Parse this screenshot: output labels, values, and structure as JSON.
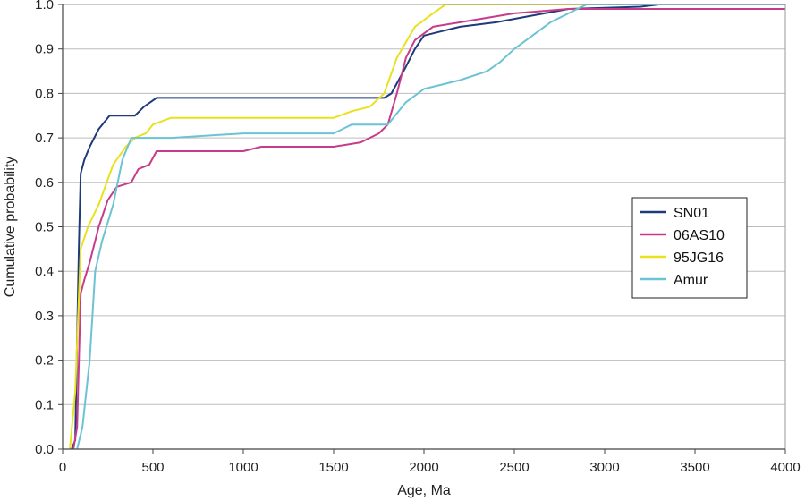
{
  "chart_data": {
    "type": "line",
    "xlabel": "Age, Ma",
    "ylabel": "Cumulative probability",
    "xlim": [
      0,
      4000
    ],
    "ylim": [
      0,
      1
    ],
    "x_ticks": [
      "0",
      "500",
      "1000",
      "1500",
      "2000",
      "2500",
      "3000",
      "3500",
      "4000"
    ],
    "y_ticks": [
      "0.0",
      "0.1",
      "0.2",
      "0.3",
      "0.4",
      "0.5",
      "0.6",
      "0.7",
      "0.8",
      "0.9",
      "1.0"
    ],
    "grid": "horizontal",
    "legend_position": "right",
    "series": [
      {
        "name": "SN01",
        "color": "#1f3a7a",
        "points": [
          [
            50,
            0
          ],
          [
            70,
            0.02
          ],
          [
            80,
            0.25
          ],
          [
            90,
            0.46
          ],
          [
            100,
            0.62
          ],
          [
            120,
            0.65
          ],
          [
            150,
            0.68
          ],
          [
            200,
            0.72
          ],
          [
            260,
            0.75
          ],
          [
            400,
            0.75
          ],
          [
            450,
            0.77
          ],
          [
            520,
            0.79
          ],
          [
            1000,
            0.79
          ],
          [
            1500,
            0.79
          ],
          [
            1780,
            0.79
          ],
          [
            1820,
            0.8
          ],
          [
            1900,
            0.86
          ],
          [
            1950,
            0.9
          ],
          [
            2000,
            0.93
          ],
          [
            2100,
            0.94
          ],
          [
            2200,
            0.95
          ],
          [
            2400,
            0.96
          ],
          [
            2600,
            0.975
          ],
          [
            2800,
            0.99
          ],
          [
            3200,
            0.995
          ],
          [
            3300,
            1.0
          ],
          [
            4000,
            1.0
          ]
        ]
      },
      {
        "name": "06AS10",
        "color": "#c73c8a",
        "points": [
          [
            60,
            0
          ],
          [
            80,
            0.05
          ],
          [
            100,
            0.35
          ],
          [
            120,
            0.38
          ],
          [
            150,
            0.42
          ],
          [
            200,
            0.5
          ],
          [
            250,
            0.56
          ],
          [
            300,
            0.59
          ],
          [
            380,
            0.6
          ],
          [
            420,
            0.63
          ],
          [
            480,
            0.64
          ],
          [
            520,
            0.67
          ],
          [
            1000,
            0.67
          ],
          [
            1100,
            0.68
          ],
          [
            1500,
            0.68
          ],
          [
            1650,
            0.69
          ],
          [
            1750,
            0.71
          ],
          [
            1800,
            0.73
          ],
          [
            1850,
            0.8
          ],
          [
            1900,
            0.88
          ],
          [
            1950,
            0.92
          ],
          [
            2050,
            0.95
          ],
          [
            2200,
            0.96
          ],
          [
            2500,
            0.98
          ],
          [
            2800,
            0.99
          ],
          [
            3000,
            0.99
          ],
          [
            4000,
            0.99
          ]
        ]
      },
      {
        "name": "95JG16",
        "color": "#e8e21e",
        "points": [
          [
            40,
            0
          ],
          [
            70,
            0.13
          ],
          [
            100,
            0.45
          ],
          [
            140,
            0.5
          ],
          [
            200,
            0.55
          ],
          [
            280,
            0.64
          ],
          [
            350,
            0.68
          ],
          [
            400,
            0.7
          ],
          [
            460,
            0.71
          ],
          [
            500,
            0.73
          ],
          [
            600,
            0.745
          ],
          [
            1000,
            0.745
          ],
          [
            1500,
            0.745
          ],
          [
            1600,
            0.76
          ],
          [
            1700,
            0.77
          ],
          [
            1780,
            0.8
          ],
          [
            1850,
            0.88
          ],
          [
            1950,
            0.95
          ],
          [
            2050,
            0.98
          ],
          [
            2120,
            1.0
          ],
          [
            4000,
            1.0
          ]
        ]
      },
      {
        "name": "Amur",
        "color": "#6cc3d4",
        "points": [
          [
            80,
            0
          ],
          [
            110,
            0.05
          ],
          [
            150,
            0.2
          ],
          [
            180,
            0.4
          ],
          [
            220,
            0.47
          ],
          [
            280,
            0.55
          ],
          [
            330,
            0.65
          ],
          [
            380,
            0.7
          ],
          [
            600,
            0.7
          ],
          [
            1000,
            0.71
          ],
          [
            1500,
            0.71
          ],
          [
            1600,
            0.73
          ],
          [
            1800,
            0.73
          ],
          [
            1900,
            0.78
          ],
          [
            2000,
            0.81
          ],
          [
            2100,
            0.82
          ],
          [
            2200,
            0.83
          ],
          [
            2350,
            0.85
          ],
          [
            2420,
            0.87
          ],
          [
            2500,
            0.9
          ],
          [
            2600,
            0.93
          ],
          [
            2700,
            0.96
          ],
          [
            2800,
            0.98
          ],
          [
            2900,
            1.0
          ],
          [
            4000,
            1.0
          ]
        ]
      }
    ]
  }
}
